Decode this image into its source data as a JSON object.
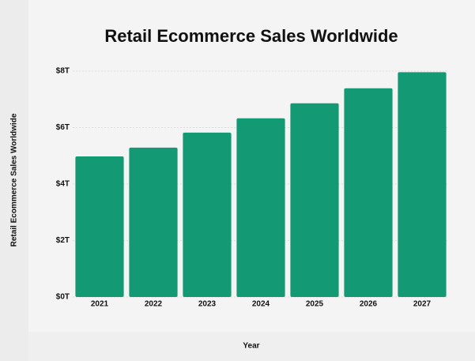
{
  "chart_data": {
    "type": "bar",
    "title": "Retail Ecommerce Sales Worldwide",
    "x_label": "Year",
    "y_label": "Retail Ecommerce Sales Worldwide",
    "categories": [
      "2021",
      "2022",
      "2023",
      "2024",
      "2025",
      "2026",
      "2027"
    ],
    "values": [
      4.98,
      5.29,
      5.82,
      6.33,
      6.86,
      7.39,
      7.96
    ],
    "color": "#139a74",
    "ylim": [
      0,
      8
    ],
    "yticks": [
      {
        "value": 0,
        "label": "$0T"
      },
      {
        "value": 2,
        "label": "$2T"
      },
      {
        "value": 4,
        "label": "$4T"
      },
      {
        "value": 6,
        "label": "$6T"
      },
      {
        "value": 8,
        "label": "$8T"
      }
    ],
    "grid": true
  }
}
